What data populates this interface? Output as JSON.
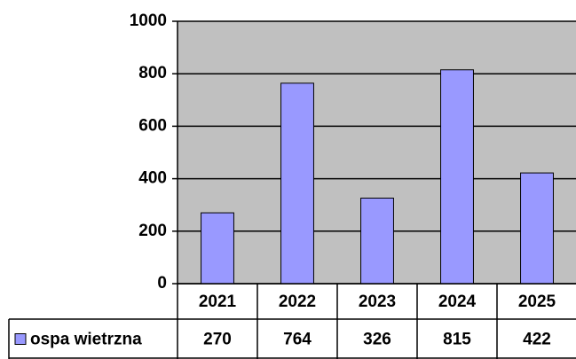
{
  "chart_data": {
    "type": "bar",
    "categories": [
      "2021",
      "2022",
      "2023",
      "2024",
      "2025"
    ],
    "series": [
      {
        "name": "ospa wietrzna",
        "color": "#9999ff",
        "values": [
          270,
          764,
          326,
          815,
          422
        ]
      }
    ],
    "ylim": [
      0,
      1000
    ],
    "yticks": [
      0,
      200,
      400,
      600,
      800,
      1000
    ],
    "grid": true,
    "plot_background": "#c0c0c0",
    "data_table": true
  }
}
